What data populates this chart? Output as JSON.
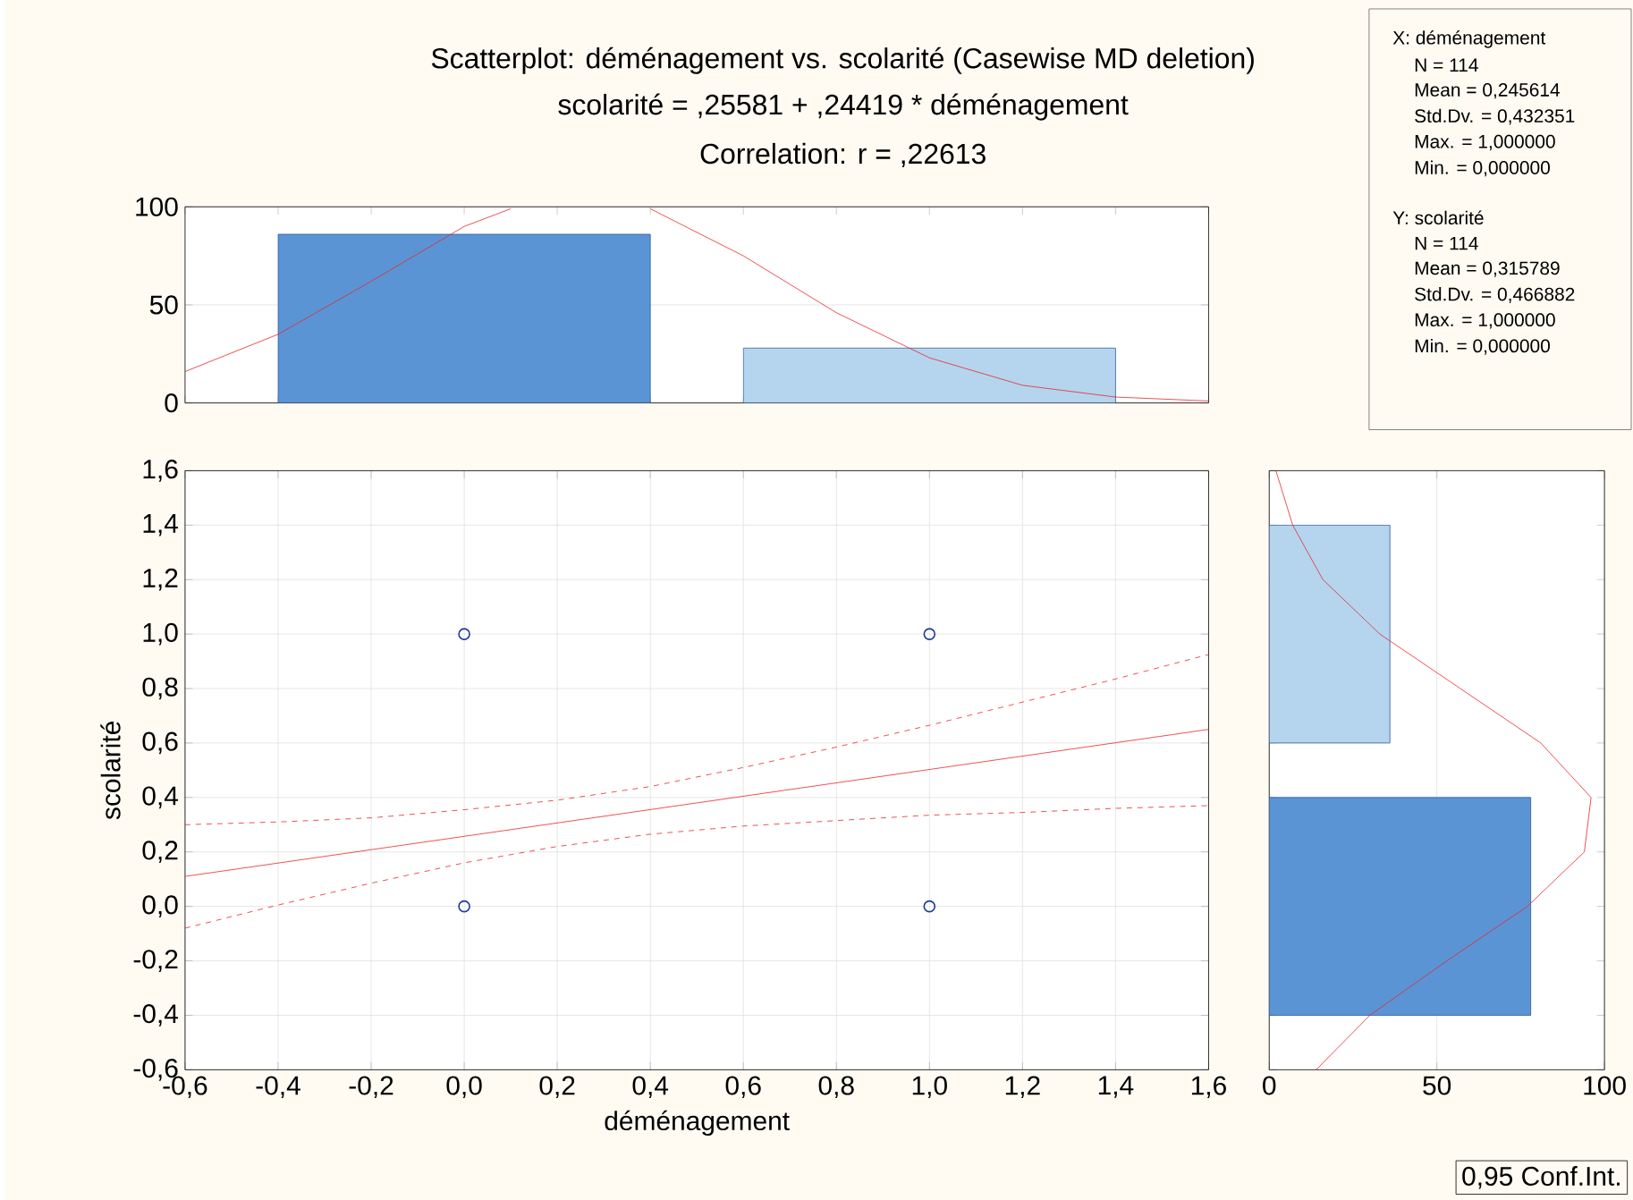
{
  "chart_data": [
    {
      "type": "bar",
      "title": "Scatterplot: déménagement vs. scolarité (Casewise MD deletion)",
      "subtitle": "scolarité = ,25581 + ,24419 * déménagement",
      "annotations": [
        "Correlation: r = ,22613"
      ],
      "xlim": [
        -0.6,
        1.6
      ],
      "ylim": [
        0,
        100
      ],
      "yticks": [
        0,
        50,
        100
      ],
      "grid": "y",
      "tick_labels": "y",
      "xticks": [
        {
          "value": -0.6,
          "label": null
        },
        {
          "value": -0.4,
          "label": null
        },
        {
          "value": -0.2,
          "label": null
        },
        {
          "value": 0,
          "label": null
        },
        {
          "value": 0.2,
          "label": null
        },
        {
          "value": 0.4,
          "label": null
        },
        {
          "value": 0.6,
          "label": null
        },
        {
          "value": 0.8,
          "label": null
        },
        {
          "value": 1.0,
          "label": null
        },
        {
          "value": 1.2,
          "label": null
        },
        {
          "value": 1.4,
          "label": null
        },
        {
          "value": 1.6,
          "label": null
        }
      ],
      "series": [
        {
          "type": "bar",
          "x": [
            0,
            1
          ],
          "values": [
            86,
            28
          ],
          "colors": [
            "#5b94d4",
            "#b5d5ef"
          ]
        },
        {
          "type": "line",
          "color": "#e8262b",
          "x": [
            -0.6,
            -0.4,
            -0.2,
            0,
            0.1,
            0.2,
            0.3,
            0.4,
            0.6,
            0.8,
            1.0,
            1.2,
            1.4,
            1.6
          ],
          "values": [
            16,
            35,
            62,
            90,
            99,
            null,
            null,
            99,
            75,
            46,
            23,
            9,
            3,
            1
          ]
        }
      ]
    },
    {
      "type": "scatter",
      "annotations": [
        "0,95 Conf.Int."
      ],
      "xlabel": "déménagement",
      "ylabel": "scolarité",
      "grid": true,
      "xlim": [
        -0.6,
        1.6
      ],
      "ylim": [
        -0.6,
        1.6
      ],
      "xticks": [
        {
          "value": -0.6,
          "label": "-0,6"
        },
        {
          "value": -0.4,
          "label": "-0,4"
        },
        {
          "value": -0.2,
          "label": "-0,2"
        },
        {
          "value": 0,
          "label": "0,0"
        },
        {
          "value": 0.2,
          "label": "0,2"
        },
        {
          "value": 0.4,
          "label": "0,4"
        },
        {
          "value": 0.6,
          "label": "0,6"
        },
        {
          "value": 0.8,
          "label": "0,8"
        },
        {
          "value": 1.0,
          "label": "1,0"
        },
        {
          "value": 1.2,
          "label": "1,2"
        },
        {
          "value": 1.4,
          "label": "1,4"
        },
        {
          "value": 1.6,
          "label": "1,6"
        }
      ],
      "yticks": [
        {
          "value": -0.6,
          "label": "-0,6"
        },
        {
          "value": -0.4,
          "label": "-0,4"
        },
        {
          "value": -0.2,
          "label": "-0,2"
        },
        {
          "value": 0,
          "label": "0,0"
        },
        {
          "value": 0.2,
          "label": "0,2"
        },
        {
          "value": 0.4,
          "label": "0,4"
        },
        {
          "value": 0.6,
          "label": "0,6"
        },
        {
          "value": 0.8,
          "label": "0,8"
        },
        {
          "value": 1.0,
          "label": "1,0"
        },
        {
          "value": 1.2,
          "label": "1,2"
        },
        {
          "value": 1.4,
          "label": "1,4"
        },
        {
          "value": 1.6,
          "label": "1,6"
        }
      ],
      "series": [
        {
          "type": "scatter",
          "marker": "circle",
          "color": "#1f3c99",
          "x": [
            0,
            0,
            1,
            1
          ],
          "values": [
            1,
            0,
            1,
            0
          ]
        },
        {
          "type": "line",
          "line_style": "solid",
          "color": "#e8262b",
          "x": [
            -0.6,
            1.6
          ],
          "values": [
            0.11,
            0.65
          ]
        },
        {
          "type": "line",
          "line_style": "dashed",
          "color": "#e8262b",
          "x": [
            -0.6,
            -0.4,
            -0.2,
            0,
            0.2,
            0.4,
            0.6,
            0.8,
            1.0,
            1.2,
            1.4,
            1.6
          ],
          "values": [
            0.3,
            0.31,
            0.325,
            0.355,
            0.39,
            0.44,
            0.51,
            0.585,
            0.665,
            0.75,
            0.835,
            0.925
          ]
        },
        {
          "type": "line",
          "line_style": "dashed",
          "color": "#e8262b",
          "x": [
            -0.6,
            -0.4,
            -0.2,
            0,
            0.2,
            0.4,
            0.6,
            0.8,
            1.0,
            1.2,
            1.4,
            1.6
          ],
          "values": [
            -0.08,
            0.005,
            0.085,
            0.16,
            0.22,
            0.265,
            0.295,
            0.315,
            0.335,
            0.345,
            0.36,
            0.37
          ]
        }
      ]
    },
    {
      "type": "bar",
      "orientation": "horizontal",
      "xlim": [
        0,
        100
      ],
      "xticks": [
        0,
        50,
        100
      ],
      "ylim": [
        -0.6,
        1.6
      ],
      "grid": "x",
      "tick_labels": "x",
      "yticks": [
        {
          "value": -0.6,
          "label": null
        },
        {
          "value": -0.4,
          "label": null
        },
        {
          "value": -0.2,
          "label": null
        },
        {
          "value": 0,
          "label": null
        },
        {
          "value": 0.2,
          "label": null
        },
        {
          "value": 0.4,
          "label": null
        },
        {
          "value": 0.6,
          "label": null
        },
        {
          "value": 0.8,
          "label": null
        },
        {
          "value": 1.0,
          "label": null
        },
        {
          "value": 1.2,
          "label": null
        },
        {
          "value": 1.4,
          "label": null
        },
        {
          "value": 1.6,
          "label": null
        }
      ],
      "series": [
        {
          "type": "bar",
          "x": [
            0,
            1
          ],
          "values": [
            78,
            36
          ],
          "colors": [
            "#5b94d4",
            "#b5d5ef"
          ]
        },
        {
          "type": "line",
          "color": "#e8262b",
          "x": [
            -0.6,
            -0.4,
            -0.2,
            0,
            0.2,
            0.4,
            0.6,
            0.8,
            1.0,
            1.2,
            1.4,
            1.6
          ],
          "values": [
            14,
            30,
            53,
            77,
            94,
            96,
            81,
            57,
            33,
            16,
            7,
            2
          ]
        }
      ]
    },
    {
      "type": "other",
      "annotations": [
        "X:  déménagement",
        "N = 114",
        "Mean = 0,245614",
        "Std.Dv. = 0,432351",
        "Max. = 1,000000",
        "Min. = 0,000000",
        "Y:  scolarité",
        "N = 114",
        "Mean = 0,315789",
        "Std.Dv. = 0,466882",
        "Max. = 1,000000",
        "Min. = 0,000000"
      ]
    }
  ]
}
